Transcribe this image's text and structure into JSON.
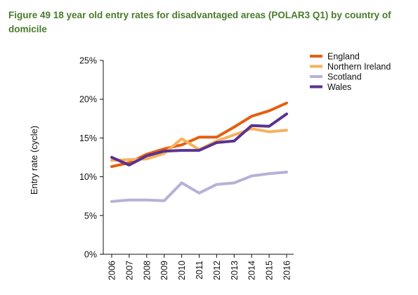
{
  "title": "Figure 49 18 year old entry rates for disadvantaged areas (POLAR3 Q1) by country of domicile",
  "chart_data": {
    "type": "line",
    "title": "Figure 49 18 year old entry rates for disadvantaged areas (POLAR3 Q1) by country of domicile",
    "xlabel": "",
    "ylabel": "Entry rate (cycle)",
    "categories": [
      "2006",
      "2007",
      "2008",
      "2009",
      "2010",
      "2011",
      "2012",
      "2013",
      "2014",
      "2015",
      "2016"
    ],
    "ylim": [
      0,
      25
    ],
    "yticks": [
      0,
      5,
      10,
      15,
      20,
      25
    ],
    "ytick_labels": [
      "0%",
      "5%",
      "10%",
      "15%",
      "20%",
      "25%"
    ],
    "grid": false,
    "legend_position": "top-right",
    "series": [
      {
        "name": "England",
        "color": "#e4600e",
        "values": [
          11.3,
          11.8,
          12.9,
          13.6,
          14.1,
          15.1,
          15.1,
          16.4,
          17.8,
          18.5,
          19.5
        ]
      },
      {
        "name": "Northern Ireland",
        "color": "#f8b15c",
        "values": [
          12.1,
          12.2,
          12.3,
          13.0,
          14.9,
          13.5,
          14.6,
          15.4,
          16.2,
          15.8,
          16.0
        ]
      },
      {
        "name": "Scotland",
        "color": "#b8b0d8",
        "values": [
          6.8,
          7.0,
          7.0,
          6.9,
          9.2,
          7.9,
          9.0,
          9.2,
          10.1,
          10.4,
          10.6
        ]
      },
      {
        "name": "Wales",
        "color": "#5a3291",
        "values": [
          12.5,
          11.5,
          12.7,
          13.3,
          13.4,
          13.4,
          14.4,
          14.6,
          16.6,
          16.5,
          18.1
        ]
      }
    ]
  }
}
